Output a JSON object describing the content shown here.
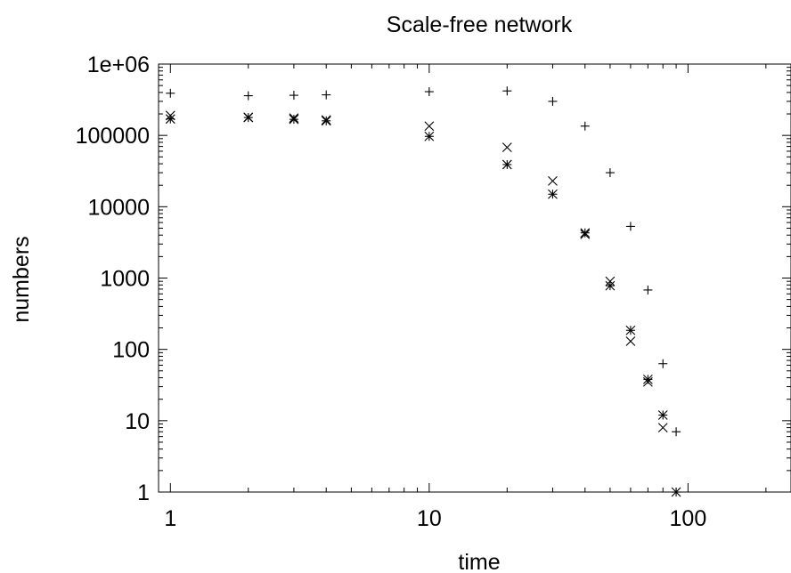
{
  "chart_data": {
    "type": "scatter",
    "title": "Scale-free network",
    "xlabel": "time",
    "ylabel": "numbers",
    "xscale": "log",
    "yscale": "log",
    "xlim": [
      0.9,
      250
    ],
    "ylim": [
      1,
      1000000
    ],
    "grid": false,
    "legend": "none",
    "x_ticks": [
      {
        "value": 1,
        "label": "1"
      },
      {
        "value": 10,
        "label": "10"
      },
      {
        "value": 100,
        "label": "100"
      }
    ],
    "y_ticks": [
      {
        "value": 1,
        "label": "1"
      },
      {
        "value": 10,
        "label": "10"
      },
      {
        "value": 100,
        "label": "100"
      },
      {
        "value": 1000,
        "label": "1000"
      },
      {
        "value": 10000,
        "label": "10000"
      },
      {
        "value": 100000,
        "label": "100000"
      },
      {
        "value": 1000000,
        "label": "1e+06"
      }
    ],
    "series": [
      {
        "marker": "plus",
        "color": "#000000",
        "points": [
          [
            1,
            390000
          ],
          [
            2,
            360000
          ],
          [
            3,
            365000
          ],
          [
            4,
            370000
          ],
          [
            10,
            410000
          ],
          [
            20,
            420000
          ],
          [
            30,
            300000
          ],
          [
            40,
            135000
          ],
          [
            50,
            30000
          ],
          [
            60,
            5300
          ],
          [
            70,
            680
          ],
          [
            80,
            63
          ],
          [
            90,
            7
          ]
        ]
      },
      {
        "marker": "cross",
        "color": "#000000",
        "points": [
          [
            1,
            190000
          ],
          [
            2,
            180000
          ],
          [
            3,
            175000
          ],
          [
            4,
            165000
          ],
          [
            10,
            135000
          ],
          [
            20,
            68000
          ],
          [
            30,
            23000
          ],
          [
            40,
            4100
          ],
          [
            50,
            900
          ],
          [
            60,
            130
          ],
          [
            70,
            35
          ],
          [
            80,
            8
          ]
        ]
      },
      {
        "marker": "star",
        "color": "#000000",
        "points": [
          [
            1,
            170000
          ],
          [
            2,
            178000
          ],
          [
            3,
            168000
          ],
          [
            4,
            160000
          ],
          [
            10,
            97000
          ],
          [
            20,
            39000
          ],
          [
            30,
            15000
          ],
          [
            40,
            4300
          ],
          [
            50,
            780
          ],
          [
            60,
            185
          ],
          [
            70,
            38
          ],
          [
            80,
            12
          ],
          [
            90,
            1
          ]
        ]
      }
    ]
  }
}
